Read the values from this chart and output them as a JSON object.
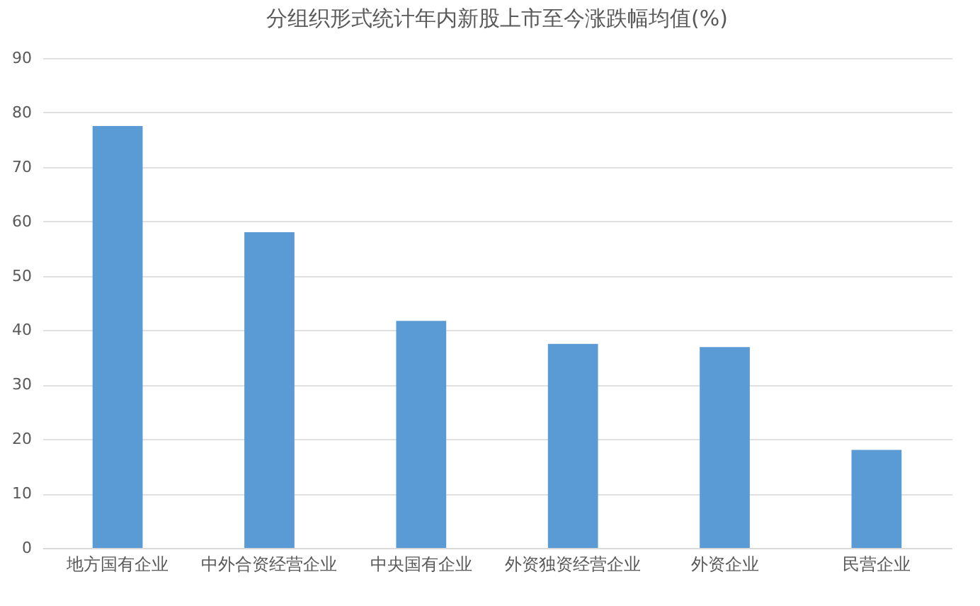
{
  "chart_data": {
    "type": "bar",
    "title": "分组织形式统计年内新股上市至今涨跌幅均值(%)",
    "categories": [
      "地方国有企业",
      "中外合资经营企业",
      "中央国有企业",
      "外资独资经营企业",
      "外资企业",
      "民营企业"
    ],
    "values": [
      77.5,
      58.0,
      41.7,
      37.5,
      36.9,
      18.0
    ],
    "color": "#5b9bd5",
    "ylim": [
      0,
      90
    ],
    "yticks": [
      0,
      10,
      20,
      30,
      40,
      50,
      60,
      70,
      80,
      90
    ],
    "grid": "y"
  }
}
